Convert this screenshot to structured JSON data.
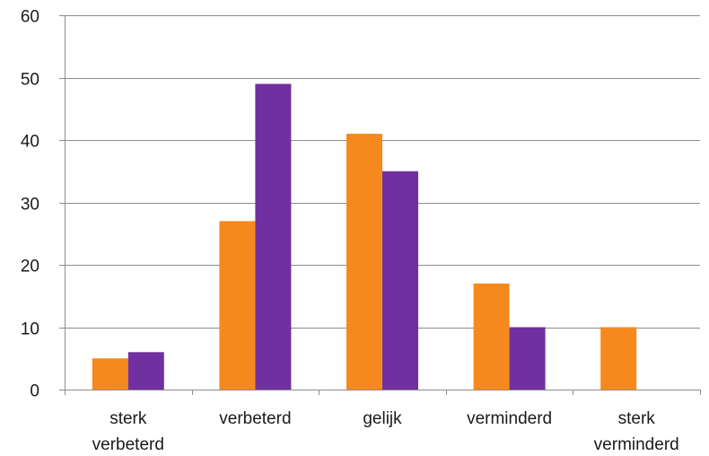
{
  "chart_data": {
    "type": "bar",
    "categories": [
      [
        "sterk",
        "verbeterd"
      ],
      [
        "verbeterd"
      ],
      [
        "gelijk"
      ],
      [
        "verminderd"
      ],
      [
        "sterk",
        "verminderd"
      ]
    ],
    "series": [
      {
        "color": "#f5891d",
        "values": [
          5,
          27,
          41,
          17,
          10
        ]
      },
      {
        "color": "#7030a0",
        "values": [
          6,
          49,
          35,
          10,
          0
        ]
      }
    ],
    "ylim": [
      0,
      60
    ],
    "yticks": [
      0,
      10,
      20,
      30,
      40,
      50,
      60
    ],
    "grid": true,
    "legend": false,
    "title": "",
    "xlabel": "",
    "ylabel": ""
  },
  "colors": {
    "gridline": "#8c8c8c",
    "axis": "#8c8c8c"
  }
}
